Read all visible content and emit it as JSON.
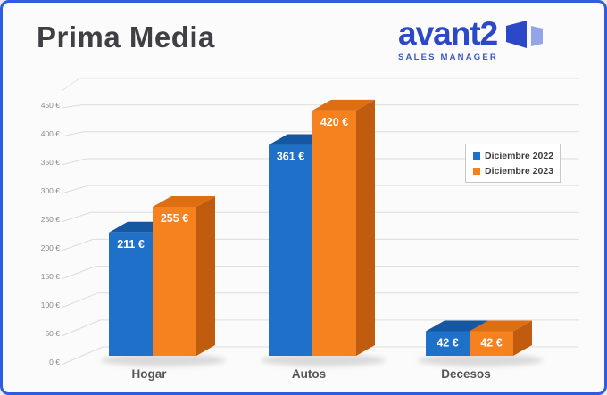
{
  "window": {
    "border_color": "#2E5BE0",
    "background": "#FBFBFC"
  },
  "header": {
    "title": "Prima Media",
    "logo": {
      "text": "avant2",
      "subtext": "SALES MANAGER",
      "text_color": "#2B49C7",
      "icon": "avant2-panels-icon",
      "icon_colors": [
        "#2B49C7",
        "#93A5E8"
      ]
    }
  },
  "chart_data": {
    "type": "bar",
    "style": "3d-clustered",
    "title": "",
    "xlabel": "",
    "ylabel": "",
    "categories": [
      "Hogar",
      "Autos",
      "Decesos"
    ],
    "series": [
      {
        "name": "Diciembre 2022",
        "color": "#1E70C8",
        "color_top": "#1557A0",
        "color_side": "#12498A",
        "values": [
          211,
          361,
          42
        ]
      },
      {
        "name": "Diciembre 2023",
        "color": "#F5821E",
        "color_top": "#DD6E12",
        "color_side": "#BF5C10",
        "values": [
          255,
          420,
          42
        ]
      }
    ],
    "value_suffix": " €",
    "data_labels": [
      "211 €",
      "255 €",
      "361 €",
      "420 €",
      "42 €",
      "42 €"
    ],
    "data_label_color": "#FFFFFF",
    "ylim": [
      0,
      450
    ],
    "y_ticks": [
      0,
      50,
      100,
      150,
      200,
      250,
      300,
      350,
      400,
      450
    ],
    "tick_labels": [
      "0 €",
      "50 €",
      "100 €",
      "150 €",
      "200 €",
      "250 €",
      "300 €",
      "350 €",
      "400 €",
      "450 €"
    ],
    "grid": true,
    "gridline_color": "#DCDCDC",
    "legend_position": "right",
    "legend_border_color": "#C9C9C9",
    "category_label_color": "#555555",
    "tick_label_color": "#8A8A8A"
  }
}
